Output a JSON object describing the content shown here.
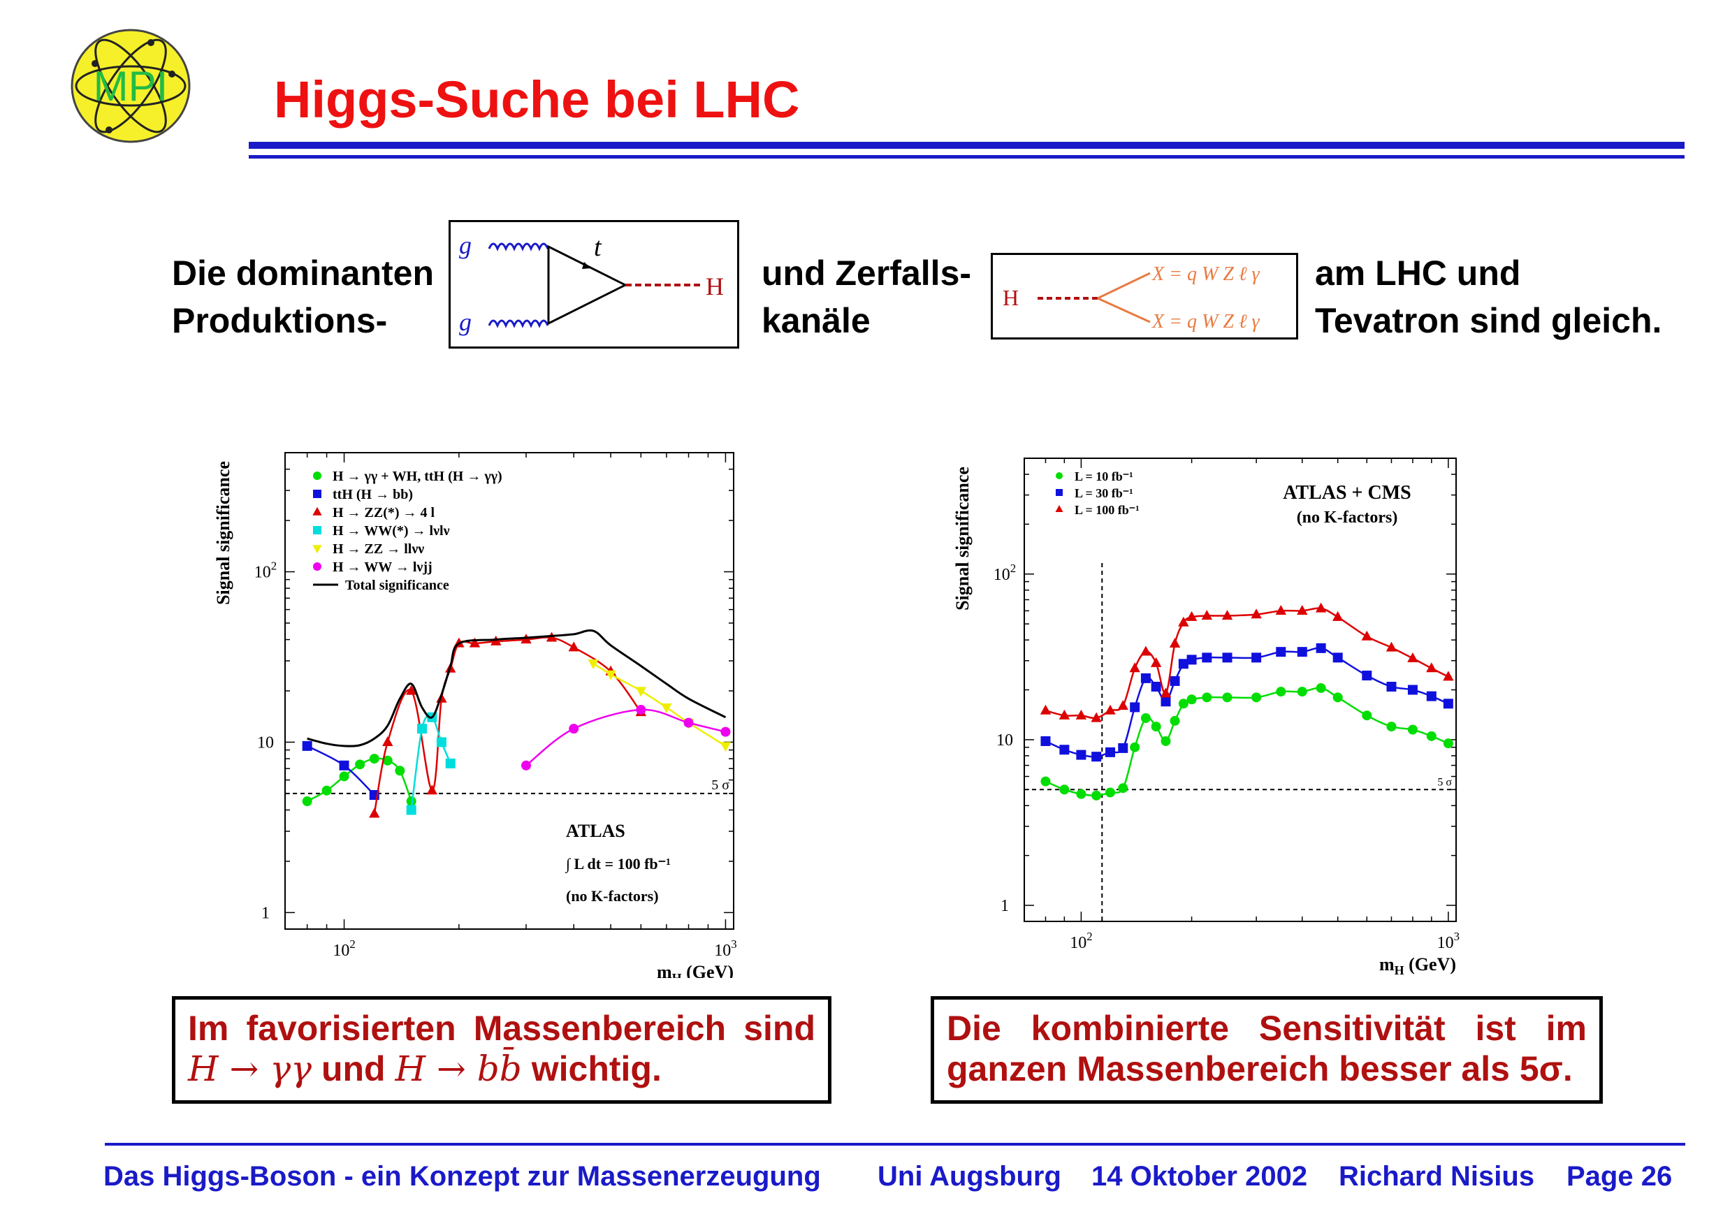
{
  "header": {
    "title": "Higgs-Suche bei LHC",
    "logo_text": "MPI"
  },
  "intro": {
    "part1_line1": "Die dominanten",
    "part1_line2": "Produktions-",
    "part2_line1": "und Zerfalls-",
    "part2_line2": "kanäle",
    "part3_line1": "am LHC und",
    "part3_line2": "Tevatron sind gleich."
  },
  "feynman_production": {
    "gluon_top": "g",
    "gluon_bottom": "g",
    "top": "t",
    "higgs": "H"
  },
  "feynman_decay": {
    "higgs": "H",
    "product_top": "X = q W Z ℓ γ",
    "product_bottom": "X = q W Z ℓ γ"
  },
  "chart_data": [
    {
      "type": "line",
      "ylabel": "Signal significance",
      "xlabel": "m_H (GeV)",
      "x_scale": "log",
      "y_scale": "log",
      "xlim": [
        70,
        1050
      ],
      "ylim": [
        0.8,
        500
      ],
      "x_ticks": [
        "10^2",
        "10^3"
      ],
      "y_ticks": [
        "1",
        "10",
        "10^2"
      ],
      "threshold": {
        "value": 5,
        "label": "5 σ"
      },
      "annotations": [
        "ATLAS",
        "∫ L dt = 100 fb⁻¹",
        "(no K-factors)"
      ],
      "legend_position": "top-left",
      "series": [
        {
          "name": "H → γγ + WH, ttH (H → γγ)",
          "color": "#00dd00",
          "marker": "circle",
          "x": [
            80,
            90,
            100,
            110,
            120,
            130,
            140,
            150
          ],
          "y": [
            4.5,
            5.2,
            6.3,
            7.4,
            8,
            7.8,
            6.8,
            4.5
          ]
        },
        {
          "name": "ttH (H → bb)",
          "color": "#1010dd",
          "marker": "square",
          "x": [
            80,
            100,
            120
          ],
          "y": [
            9.5,
            7.3,
            4.9
          ]
        },
        {
          "name": "H → ZZ(*) → 4 l",
          "color": "#dd0000",
          "marker": "triangle",
          "x": [
            120,
            130,
            150,
            170,
            180,
            190,
            200,
            220,
            250,
            300,
            350,
            400,
            500,
            600
          ],
          "y": [
            3.8,
            10,
            20,
            5.2,
            18,
            27,
            38,
            38,
            39,
            40,
            41,
            36,
            26,
            15
          ]
        },
        {
          "name": "H → WW(*) → lνlν",
          "color": "#00dddd",
          "marker": "square",
          "x": [
            150,
            160,
            170,
            180,
            190
          ],
          "y": [
            4,
            12,
            14,
            10,
            7.5
          ]
        },
        {
          "name": "H → ZZ → llνν",
          "color": "#eeee00",
          "marker": "triangle-down",
          "x": [
            450,
            500,
            600,
            700,
            800,
            1000
          ],
          "y": [
            29,
            25,
            20,
            16,
            13,
            9.5
          ]
        },
        {
          "name": "H → WW → lνjj",
          "color": "#ee00ee",
          "marker": "circle",
          "x": [
            300,
            400,
            600,
            800,
            1000
          ],
          "y": [
            7.3,
            12,
            15.5,
            13,
            11.5
          ]
        },
        {
          "name": "Total significance",
          "color": "#000000",
          "marker": "none",
          "x": [
            80,
            90,
            100,
            110,
            120,
            130,
            140,
            150,
            160,
            170,
            180,
            190,
            200,
            250,
            300,
            350,
            400,
            450,
            500,
            600,
            700,
            800,
            1000
          ],
          "y": [
            10.5,
            9.8,
            9.5,
            9.6,
            10.5,
            12.5,
            18,
            22,
            16,
            14,
            19,
            28,
            38,
            40,
            41,
            42,
            43,
            45,
            37,
            28,
            22,
            18,
            14
          ]
        }
      ]
    },
    {
      "type": "line",
      "ylabel": "Signal significance",
      "xlabel": "m_H (GeV)",
      "x_scale": "log",
      "y_scale": "log",
      "xlim": [
        70,
        1050
      ],
      "ylim": [
        0.8,
        500
      ],
      "x_ticks": [
        "10^2",
        "10^3"
      ],
      "y_ticks": [
        "1",
        "10",
        "10^2"
      ],
      "threshold": {
        "value": 5,
        "label": "5 σ"
      },
      "vertical_marker": 114,
      "annotations": [
        "ATLAS + CMS",
        "(no K-factors)"
      ],
      "legend_position": "top-left",
      "series": [
        {
          "name": "L = 10 fb⁻¹",
          "color": "#00dd00",
          "marker": "circle",
          "x": [
            80,
            90,
            100,
            110,
            120,
            130,
            140,
            150,
            160,
            170,
            180,
            190,
            200,
            220,
            250,
            300,
            350,
            400,
            450,
            500,
            600,
            700,
            800,
            900,
            1000
          ],
          "y": [
            5.6,
            5,
            4.7,
            4.6,
            4.8,
            5.1,
            9,
            13.5,
            12,
            9.8,
            13,
            16.5,
            17.5,
            18,
            18,
            18,
            19.5,
            19.5,
            20.5,
            18,
            14,
            12,
            11.5,
            10.5,
            9.5
          ]
        },
        {
          "name": "L = 30 fb⁻¹",
          "color": "#1010dd",
          "marker": "square",
          "x": [
            80,
            90,
            100,
            110,
            120,
            130,
            140,
            150,
            160,
            170,
            180,
            190,
            200,
            220,
            250,
            300,
            350,
            400,
            450,
            500,
            600,
            700,
            800,
            900,
            1000
          ],
          "y": [
            9.8,
            8.7,
            8.1,
            7.9,
            8.4,
            8.9,
            15.7,
            23.5,
            20.9,
            17,
            22.6,
            28.7,
            30.4,
            31.3,
            31.3,
            31.3,
            33.9,
            33.9,
            35.7,
            31.3,
            24.4,
            20.9,
            20,
            18.3,
            16.5
          ]
        },
        {
          "name": "L = 100 fb⁻¹",
          "color": "#dd0000",
          "marker": "triangle",
          "x": [
            80,
            90,
            100,
            110,
            120,
            130,
            140,
            150,
            160,
            170,
            180,
            190,
            200,
            220,
            250,
            300,
            350,
            400,
            450,
            500,
            600,
            700,
            800,
            900,
            1000
          ],
          "y": [
            15,
            14,
            14,
            13.5,
            15,
            16,
            27,
            34,
            29,
            19,
            38,
            51,
            55,
            56,
            56,
            57,
            60,
            60,
            62,
            55,
            42,
            36,
            31,
            27,
            24
          ]
        }
      ]
    }
  ],
  "notes": {
    "left_line1": "Im favorisierten Massenbereich sind",
    "left_line2_sym1": "H → γγ",
    "left_line2_mid": "und",
    "left_line2_sym2": "H → bb̄",
    "left_line2_end": "wichtig.",
    "right_line1": "Die kombinierte Sensitivität ist im",
    "right_line2": "ganzen Massenbereich besser als 5σ."
  },
  "footer": {
    "talk_title": "Das Higgs-Boson - ein Konzept zur Massenerzeugung",
    "institution": "Uni Augsburg",
    "date": "14 Oktober 2002",
    "author": "Richard Nisius",
    "page": "Page 26"
  },
  "colors": {
    "title": "#ee1111",
    "accent_blue": "#1a1ac8",
    "note_text": "#b01010"
  }
}
